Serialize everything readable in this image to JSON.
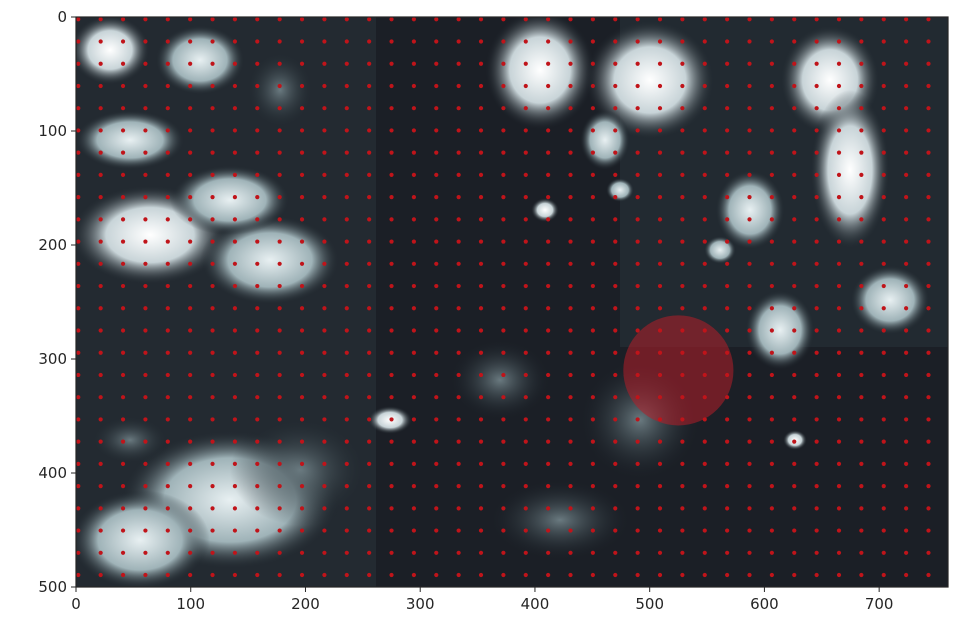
{
  "chart_data": {
    "type": "scatter",
    "title": "",
    "xlabel": "",
    "ylabel": "",
    "xlim": [
      0,
      760
    ],
    "ylim": [
      500,
      0
    ],
    "y_inverted": true,
    "grid": false,
    "x_ticks": [
      0,
      100,
      200,
      300,
      400,
      500,
      600,
      700
    ],
    "y_ticks": [
      0,
      100,
      200,
      300,
      400,
      500
    ],
    "background_image": "dark grayscale photograph of foliage / leaves with bright highlights",
    "series": [
      {
        "marker": "dot",
        "color": "#c0141a",
        "grid_x": {
          "start": 2,
          "step": 19.5,
          "stop": 758
        },
        "grid_y": {
          "start": 2,
          "step": 19.5,
          "stop": 498
        }
      }
    ],
    "annotations": [
      {
        "type": "circle",
        "cx": 525,
        "cy": 310,
        "r": 48,
        "color": "#b41e28"
      }
    ]
  }
}
